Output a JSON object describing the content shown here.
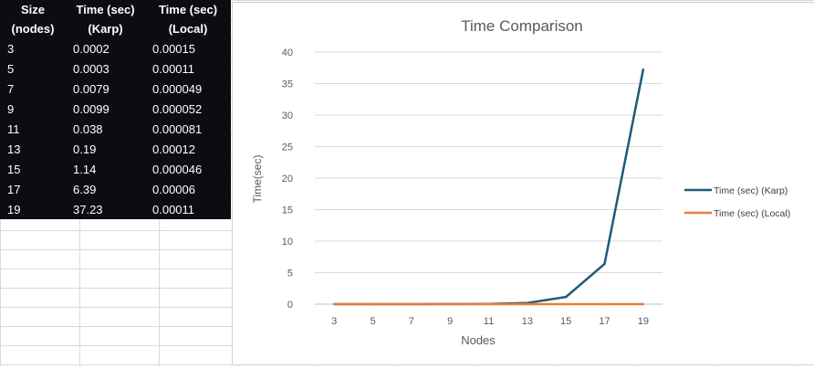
{
  "table": {
    "headers": [
      [
        "Size",
        "(nodes)"
      ],
      [
        "Time (sec)",
        "(Karp)"
      ],
      [
        "Time (sec)",
        "(Local)"
      ]
    ],
    "rows": [
      [
        "3",
        "0.0002",
        "0.00015"
      ],
      [
        "5",
        "0.0003",
        "0.00011"
      ],
      [
        "7",
        "0.0079",
        "0.000049"
      ],
      [
        "9",
        "0.0099",
        "0.000052"
      ],
      [
        "11",
        "0.038",
        "0.000081"
      ],
      [
        "13",
        "0.19",
        "0.00012"
      ],
      [
        "15",
        "1.14",
        "0.000046"
      ],
      [
        "17",
        "6.39",
        "0.00006"
      ],
      [
        "19",
        "37.23",
        "0.00011"
      ]
    ]
  },
  "chart_data": {
    "type": "line",
    "title": "Time Comparison",
    "xlabel": "Nodes",
    "ylabel": "Time(sec)",
    "x": [
      3,
      5,
      7,
      9,
      11,
      13,
      15,
      17,
      19
    ],
    "ylim": [
      0,
      40
    ],
    "yticks": [
      0,
      5,
      10,
      15,
      20,
      25,
      30,
      35,
      40
    ],
    "grid": true,
    "legend": "right",
    "series": [
      {
        "name": "Time (sec) (Karp)",
        "color": "#1f5a7a",
        "values": [
          0.0002,
          0.0003,
          0.0079,
          0.0099,
          0.038,
          0.19,
          1.14,
          6.39,
          37.23
        ]
      },
      {
        "name": "Time (sec) (Local)",
        "color": "#e97d3b",
        "values": [
          0.00015,
          0.00011,
          4.9e-05,
          5.2e-05,
          8.1e-05,
          0.00012,
          4.6e-05,
          6e-05,
          0.00011
        ]
      }
    ]
  }
}
